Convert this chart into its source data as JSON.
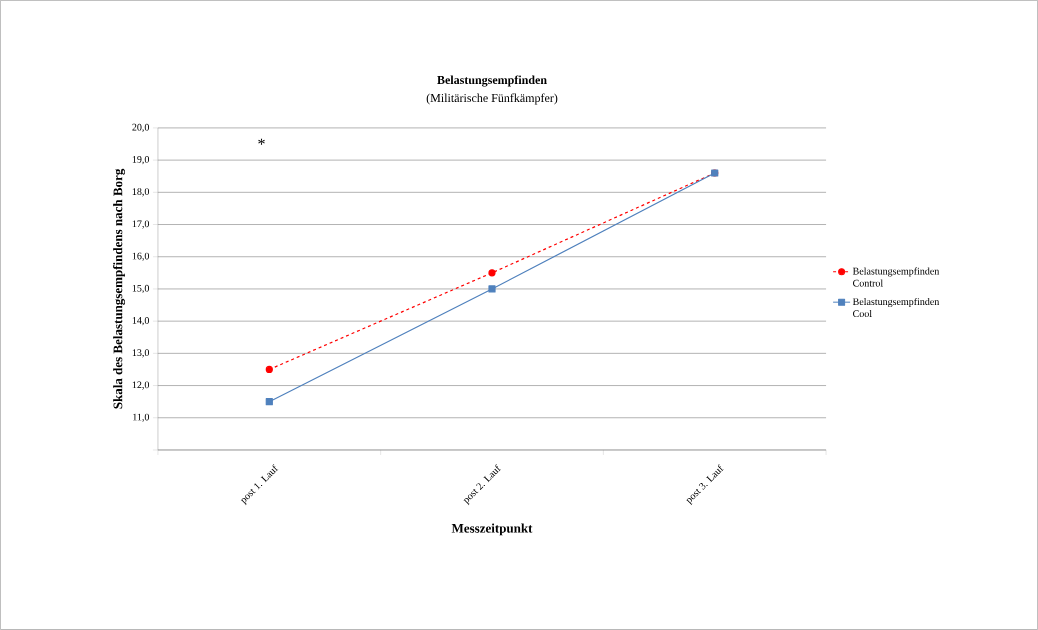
{
  "chart_data": {
    "type": "line",
    "title": "Belastungsempfinden",
    "subtitle": "(Militärische Fünfkämpfer)",
    "xlabel": "Messzeitpunkt",
    "ylabel": "Skala des Belastungsempfindens nach Borg",
    "categories": [
      "post 1. Lauf",
      "post 2. Lauf",
      "post 3. Lauf"
    ],
    "series": [
      {
        "name": "Belastungsempfinden Control",
        "color": "#ff0000",
        "values": [
          12.5,
          15.5,
          18.6
        ],
        "marker": "circle",
        "line_style": "dashed"
      },
      {
        "name": "Belastungsempfinden Cool",
        "color": "#4f81bd",
        "values": [
          11.5,
          15.0,
          18.6
        ],
        "marker": "square",
        "line_style": "solid"
      }
    ],
    "ylim": [
      10,
      20
    ],
    "yticks": [
      {
        "value": 10,
        "label": null
      },
      {
        "value": 11,
        "label": "11,0"
      },
      {
        "value": 12,
        "label": "12,0"
      },
      {
        "value": 13,
        "label": "13,0"
      },
      {
        "value": 14,
        "label": "14,0"
      },
      {
        "value": 15,
        "label": "15,0"
      },
      {
        "value": 16,
        "label": "16,0"
      },
      {
        "value": 17,
        "label": "17,0"
      },
      {
        "value": 18,
        "label": "18,0"
      },
      {
        "value": 19,
        "label": "19,0"
      },
      {
        "value": 20,
        "label": "20,0"
      }
    ],
    "grid": "y",
    "legend": "right",
    "annotations": [
      "*"
    ]
  }
}
